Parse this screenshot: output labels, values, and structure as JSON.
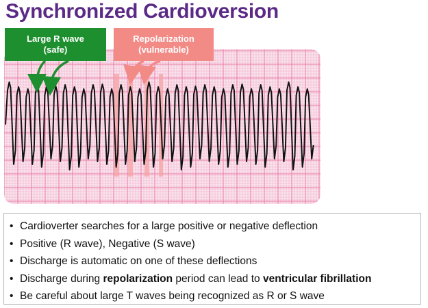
{
  "title": "Synchronized Cardioversion",
  "callouts": {
    "safe": {
      "line1": "Large R wave",
      "line2": "(safe)",
      "color": "#1e8f2e"
    },
    "vulnerable": {
      "line1": "Repolarization",
      "line2": "(vulnerable)",
      "color": "#f28a86"
    }
  },
  "ecg": {
    "grid_color": "#e97aa6",
    "background": "#f9e3ec",
    "trace_color": "#111111",
    "highlight_color": "#f4a3a3",
    "beats": 33
  },
  "bullets": [
    {
      "parts": [
        {
          "text": "Cardioverter searches for a large positive or negative deflection",
          "bold": false
        }
      ]
    },
    {
      "parts": [
        {
          "text": "Positive (R wave), Negative (S wave)",
          "bold": false
        }
      ]
    },
    {
      "parts": [
        {
          "text": "Discharge is automatic on one of these deflections",
          "bold": false
        }
      ]
    },
    {
      "parts": [
        {
          "text": "Discharge during ",
          "bold": false
        },
        {
          "text": "repolarization",
          "bold": true
        },
        {
          "text": " period can lead to ",
          "bold": false
        },
        {
          "text": "ventricular fibrillation",
          "bold": true
        }
      ]
    },
    {
      "parts": [
        {
          "text": "Be careful about large T waves being recognized as R or S wave",
          "bold": false
        }
      ]
    }
  ],
  "bullet_glyph": "•"
}
